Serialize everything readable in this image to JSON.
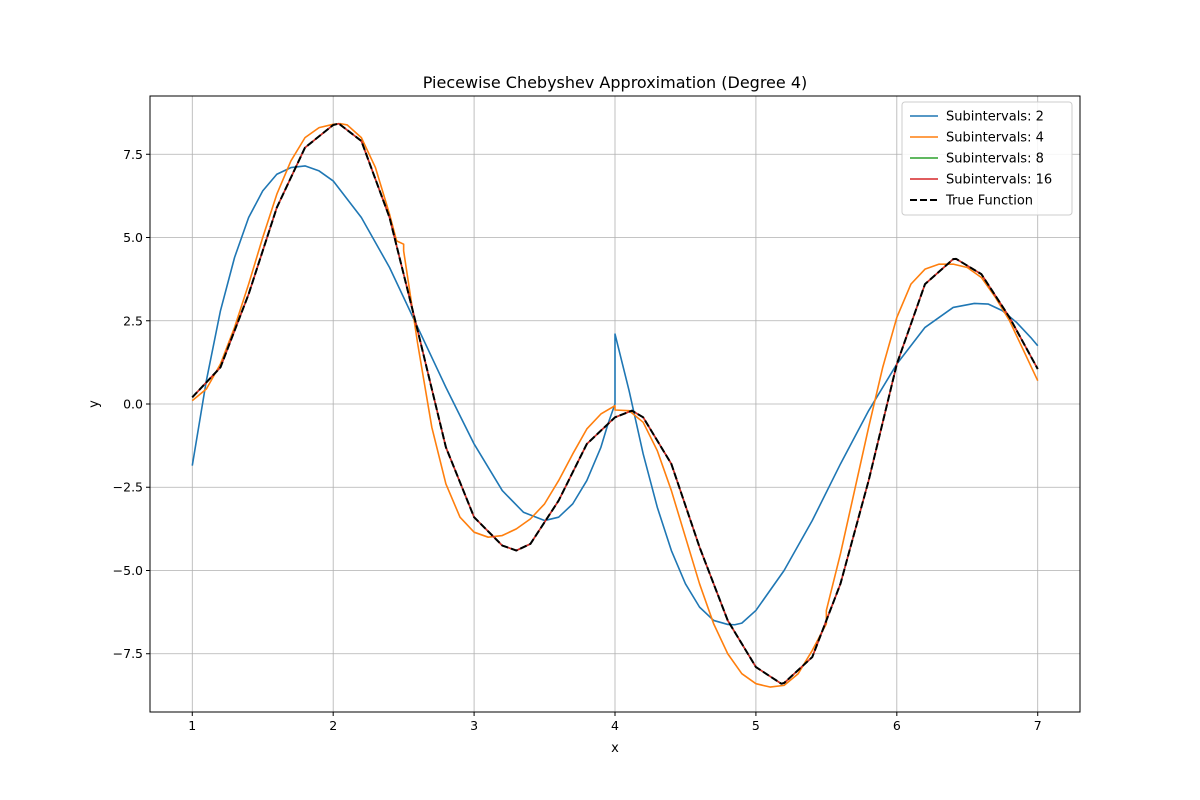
{
  "chart_data": {
    "type": "line",
    "title": "Piecewise Chebyshev Approximation (Degree 4)",
    "xlabel": "x",
    "ylabel": "y",
    "xlim": [
      0.7,
      7.3
    ],
    "ylim": [
      -9.25,
      9.25
    ],
    "x_ticks": [
      1,
      2,
      3,
      4,
      5,
      6,
      7
    ],
    "x_tick_labels": [
      "1",
      "2",
      "3",
      "4",
      "5",
      "6",
      "7"
    ],
    "y_ticks": [
      -7.5,
      -5.0,
      -2.5,
      0.0,
      2.5,
      5.0,
      7.5
    ],
    "y_tick_labels": [
      "−7.5",
      "−5.0",
      "−2.5",
      "0.0",
      "2.5",
      "5.0",
      "7.5"
    ],
    "grid": true,
    "legend_position": "top-right",
    "colors": {
      "blue": "#1f77b4",
      "orange": "#ff7f0e",
      "green": "#2ca02c",
      "red": "#d62728",
      "true": "#000000"
    },
    "series": [
      {
        "name": "Subintervals: 2",
        "color": "#1f77b4",
        "style": "solid",
        "x": [
          1.0,
          1.1,
          1.2,
          1.3,
          1.4,
          1.5,
          1.6,
          1.7,
          1.8,
          1.9,
          2.0,
          2.2,
          2.4,
          2.6,
          2.8,
          3.0,
          3.2,
          3.35,
          3.5,
          3.6,
          3.7,
          3.8,
          3.9,
          3.95,
          4.0,
          4.0,
          4.1,
          4.2,
          4.3,
          4.4,
          4.5,
          4.6,
          4.7,
          4.8,
          4.85,
          4.9,
          5.0,
          5.2,
          5.4,
          5.6,
          5.8,
          6.0,
          6.2,
          6.4,
          6.55,
          6.65,
          6.75,
          6.85,
          6.95,
          7.0
        ],
        "y": [
          -1.85,
          0.7,
          2.8,
          4.4,
          5.6,
          6.4,
          6.9,
          7.1,
          7.15,
          7.0,
          6.7,
          5.6,
          4.1,
          2.3,
          0.5,
          -1.2,
          -2.6,
          -3.25,
          -3.5,
          -3.4,
          -3.0,
          -2.3,
          -1.3,
          -0.6,
          0.0,
          2.1,
          0.4,
          -1.5,
          -3.1,
          -4.4,
          -5.4,
          -6.1,
          -6.5,
          -6.62,
          -6.63,
          -6.58,
          -6.2,
          -5.0,
          -3.5,
          -1.8,
          -0.2,
          1.2,
          2.3,
          2.9,
          3.02,
          3.0,
          2.8,
          2.45,
          2.0,
          1.75
        ]
      },
      {
        "name": "Subintervals: 4",
        "color": "#ff7f0e",
        "style": "solid",
        "x": [
          1.0,
          1.1,
          1.2,
          1.3,
          1.4,
          1.5,
          1.6,
          1.7,
          1.8,
          1.9,
          2.0,
          2.05,
          2.1,
          2.2,
          2.3,
          2.4,
          2.45,
          2.5,
          2.5,
          2.6,
          2.7,
          2.8,
          2.9,
          3.0,
          3.1,
          3.2,
          3.3,
          3.4,
          3.5,
          3.6,
          3.7,
          3.8,
          3.9,
          4.0,
          4.0,
          4.1,
          4.2,
          4.3,
          4.4,
          4.5,
          4.6,
          4.7,
          4.8,
          4.9,
          5.0,
          5.1,
          5.2,
          5.3,
          5.4,
          5.5,
          5.5,
          5.6,
          5.7,
          5.8,
          5.9,
          6.0,
          6.1,
          6.2,
          6.3,
          6.4,
          6.5,
          6.6,
          6.7,
          6.8,
          6.9,
          7.0
        ],
        "y": [
          0.1,
          0.45,
          1.2,
          2.3,
          3.6,
          5.0,
          6.3,
          7.3,
          8.0,
          8.3,
          8.4,
          8.42,
          8.38,
          8.0,
          7.1,
          5.7,
          4.9,
          4.8,
          4.6,
          1.8,
          -0.7,
          -2.4,
          -3.4,
          -3.85,
          -4.0,
          -3.95,
          -3.75,
          -3.45,
          -3.0,
          -2.3,
          -1.5,
          -0.75,
          -0.3,
          -0.05,
          -0.18,
          -0.2,
          -0.55,
          -1.4,
          -2.6,
          -4.0,
          -5.4,
          -6.6,
          -7.5,
          -8.1,
          -8.4,
          -8.5,
          -8.45,
          -8.1,
          -7.4,
          -6.6,
          -6.2,
          -4.5,
          -2.6,
          -0.7,
          1.1,
          2.6,
          3.6,
          4.05,
          4.2,
          4.2,
          4.1,
          3.8,
          3.2,
          2.5,
          1.6,
          0.7
        ]
      },
      {
        "name": "Subintervals: 8",
        "color": "#2ca02c",
        "style": "solid",
        "x": [
          1.0,
          1.2,
          1.4,
          1.6,
          1.8,
          2.0,
          2.04,
          2.2,
          2.4,
          2.6,
          2.8,
          3.0,
          3.2,
          3.3,
          3.4,
          3.6,
          3.8,
          4.0,
          4.12,
          4.2,
          4.4,
          4.6,
          4.8,
          5.0,
          5.18,
          5.2,
          5.4,
          5.6,
          5.8,
          6.0,
          6.2,
          6.4,
          6.42,
          6.6,
          6.8,
          7.0
        ],
        "y": [
          0.2,
          1.1,
          3.3,
          5.9,
          7.7,
          8.38,
          8.42,
          7.9,
          5.6,
          2.2,
          -1.3,
          -3.4,
          -4.25,
          -4.4,
          -4.2,
          -2.9,
          -1.2,
          -0.4,
          -0.2,
          -0.4,
          -1.8,
          -4.3,
          -6.5,
          -7.9,
          -8.4,
          -8.38,
          -7.6,
          -5.4,
          -2.3,
          1.2,
          3.6,
          4.35,
          4.36,
          3.9,
          2.6,
          1.05
        ]
      },
      {
        "name": "Subintervals: 16",
        "color": "#d62728",
        "style": "solid",
        "x": [
          1.0,
          1.2,
          1.4,
          1.6,
          1.8,
          2.0,
          2.04,
          2.2,
          2.4,
          2.6,
          2.8,
          3.0,
          3.2,
          3.3,
          3.4,
          3.6,
          3.8,
          4.0,
          4.12,
          4.2,
          4.4,
          4.6,
          4.8,
          5.0,
          5.18,
          5.2,
          5.4,
          5.6,
          5.8,
          6.0,
          6.2,
          6.4,
          6.42,
          6.6,
          6.8,
          7.0
        ],
        "y": [
          0.2,
          1.1,
          3.3,
          5.9,
          7.7,
          8.38,
          8.42,
          7.9,
          5.6,
          2.2,
          -1.3,
          -3.4,
          -4.25,
          -4.4,
          -4.2,
          -2.9,
          -1.2,
          -0.4,
          -0.2,
          -0.4,
          -1.8,
          -4.3,
          -6.5,
          -7.9,
          -8.4,
          -8.38,
          -7.6,
          -5.4,
          -2.3,
          1.2,
          3.6,
          4.35,
          4.36,
          3.9,
          2.6,
          1.05
        ]
      },
      {
        "name": "True Function",
        "color": "#000000",
        "style": "dashed",
        "x": [
          1.0,
          1.2,
          1.4,
          1.6,
          1.8,
          2.0,
          2.04,
          2.2,
          2.4,
          2.6,
          2.8,
          3.0,
          3.2,
          3.3,
          3.4,
          3.6,
          3.8,
          4.0,
          4.12,
          4.2,
          4.4,
          4.6,
          4.8,
          5.0,
          5.18,
          5.2,
          5.4,
          5.6,
          5.8,
          6.0,
          6.2,
          6.4,
          6.42,
          6.6,
          6.8,
          7.0
        ],
        "y": [
          0.2,
          1.1,
          3.3,
          5.9,
          7.7,
          8.38,
          8.42,
          7.9,
          5.6,
          2.2,
          -1.3,
          -3.4,
          -4.25,
          -4.4,
          -4.2,
          -2.9,
          -1.2,
          -0.4,
          -0.2,
          -0.4,
          -1.8,
          -4.3,
          -6.5,
          -7.9,
          -8.4,
          -8.38,
          -7.6,
          -5.4,
          -2.3,
          1.2,
          3.6,
          4.35,
          4.36,
          3.9,
          2.6,
          1.05
        ]
      }
    ]
  }
}
